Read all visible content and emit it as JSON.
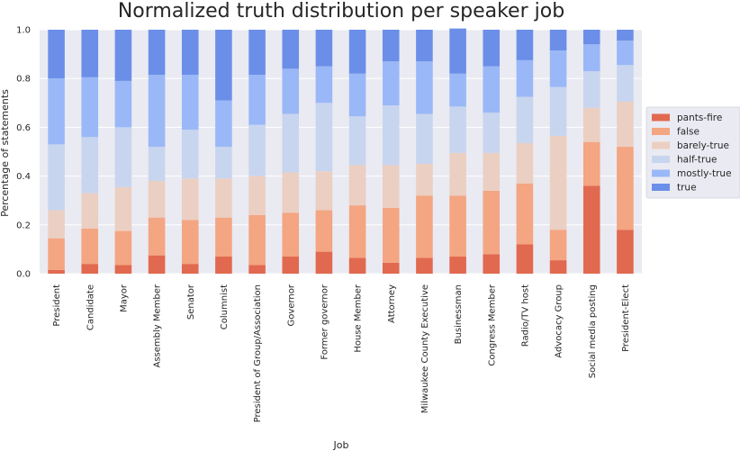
{
  "chart_data": {
    "type": "bar",
    "stacked": true,
    "title": "Normalized truth distribution per speaker job",
    "xlabel": "Job",
    "ylabel": "Percentage of statements",
    "ylim": [
      0,
      1.0
    ],
    "yticks": [
      "0.0",
      "0.2",
      "0.4",
      "0.6",
      "0.8",
      "1.0"
    ],
    "grid": true,
    "legend_position": "right",
    "categories": [
      "President",
      "Candidate",
      "Mayor",
      "Assembly Member",
      "Senator",
      "Columnist",
      "President of Group/Association",
      "Governor",
      "Former governor",
      "House Member",
      "Attorney",
      "Milwaukee County Executive",
      "Businessman",
      "Congress Member",
      "Radio/TV host",
      "Advocacy Group",
      "Social media posting",
      "President-Elect"
    ],
    "series": [
      {
        "name": "pants-fire",
        "color": "#e1694f",
        "values": [
          0.015,
          0.04,
          0.035,
          0.075,
          0.04,
          0.07,
          0.035,
          0.07,
          0.09,
          0.065,
          0.045,
          0.065,
          0.07,
          0.08,
          0.12,
          0.055,
          0.36,
          0.18
        ]
      },
      {
        "name": "false",
        "color": "#f4a582",
        "values": [
          0.13,
          0.145,
          0.14,
          0.155,
          0.18,
          0.16,
          0.205,
          0.18,
          0.17,
          0.215,
          0.225,
          0.255,
          0.25,
          0.26,
          0.25,
          0.125,
          0.18,
          0.34
        ]
      },
      {
        "name": "barely-true",
        "color": "#ebcfc2",
        "values": [
          0.115,
          0.145,
          0.18,
          0.15,
          0.17,
          0.16,
          0.16,
          0.165,
          0.16,
          0.165,
          0.175,
          0.13,
          0.175,
          0.155,
          0.165,
          0.385,
          0.14,
          0.185
        ]
      },
      {
        "name": "half-true",
        "color": "#c8d5ef",
        "values": [
          0.27,
          0.23,
          0.245,
          0.14,
          0.2,
          0.13,
          0.21,
          0.24,
          0.28,
          0.2,
          0.245,
          0.205,
          0.19,
          0.165,
          0.19,
          0.2,
          0.15,
          0.15
        ]
      },
      {
        "name": "mostly-true",
        "color": "#9ab8f7",
        "values": [
          0.27,
          0.245,
          0.19,
          0.295,
          0.225,
          0.19,
          0.205,
          0.185,
          0.15,
          0.175,
          0.18,
          0.215,
          0.135,
          0.19,
          0.15,
          0.15,
          0.11,
          0.1
        ]
      },
      {
        "name": "true",
        "color": "#6b8fe8",
        "values": [
          0.2,
          0.195,
          0.21,
          0.185,
          0.185,
          0.29,
          0.185,
          0.16,
          0.15,
          0.18,
          0.13,
          0.13,
          0.185,
          0.15,
          0.125,
          0.085,
          0.06,
          0.045
        ]
      }
    ]
  }
}
